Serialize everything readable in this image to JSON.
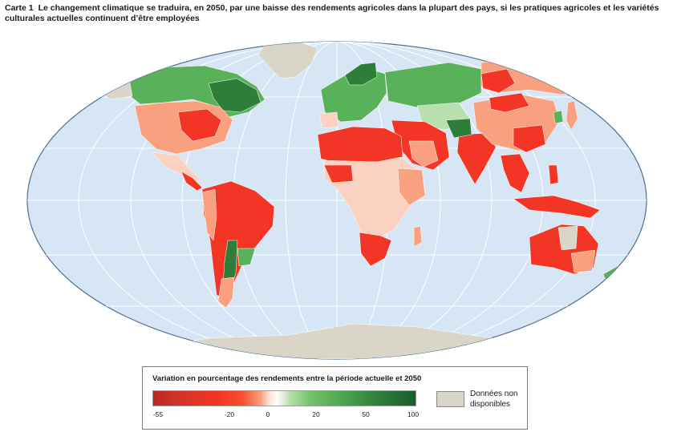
{
  "title": {
    "label": "Carte 1",
    "text": "Le changement climatique se traduira, en 2050, par une baisse des rendements agricoles dans la plupart des pays, si les pratiques agricoles et les variétés culturales actuelles continuent d’être employées"
  },
  "legend": {
    "title": "Variation en pourcentage des rendements entre la période actuelle et 2050",
    "ticks": [
      "-55",
      "-20",
      "0",
      "20",
      "50",
      "100"
    ],
    "no_data_label": "Données non disponibles"
  },
  "colors": {
    "ocean": "#d6e6f4",
    "strong_decrease": "#f23524",
    "moderate_decrease": "#f9a07f",
    "slight_decrease": "#fbd2c2",
    "increase": "#4ea650",
    "strong_increase": "#2e7e3a",
    "no_data": "#d9d6c8"
  }
}
